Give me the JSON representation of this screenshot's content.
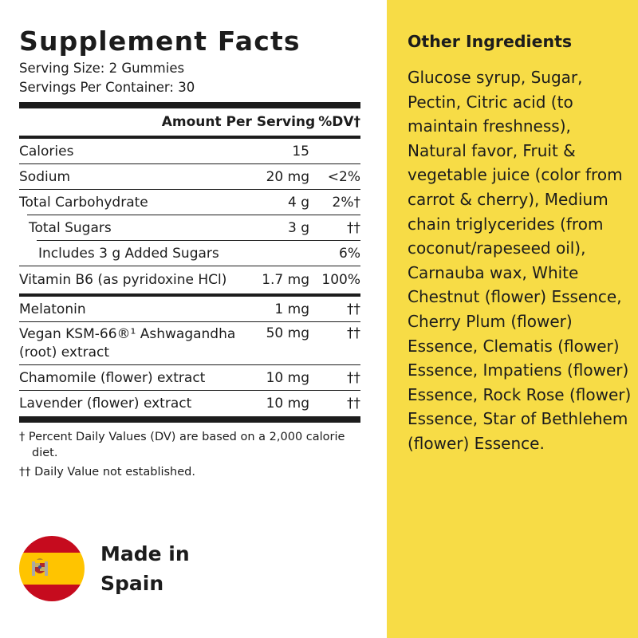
{
  "facts": {
    "title": "Supplement Facts",
    "serving_size": "Serving Size: 2 Gummies",
    "servings_per_container": "Servings Per Container: 30",
    "header_amount": "Amount Per Serving",
    "header_dv": "%DV†",
    "rows": [
      {
        "name": "Calories",
        "amount": "15",
        "dv": ""
      },
      {
        "name": "Sodium",
        "amount": "20 mg",
        "dv": "<2%"
      },
      {
        "name": "Total Carbohydrate",
        "amount": "4 g",
        "dv": "2%†"
      },
      {
        "name": "Total Sugars",
        "amount": "3 g",
        "dv": "††"
      },
      {
        "name": "Includes 3 g Added Sugars",
        "amount": "",
        "dv": "6%"
      },
      {
        "name": "Vitamin B6 (as pyridoxine HCl)",
        "amount": "1.7 mg",
        "dv": "100%"
      },
      {
        "name": "Melatonin",
        "amount": "1 mg",
        "dv": "††"
      },
      {
        "name": "Vegan KSM-66®¹ Ashwagandha (root) extract",
        "amount": "50 mg",
        "dv": "††"
      },
      {
        "name": "Chamomile (flower) extract",
        "amount": "10 mg",
        "dv": "††"
      },
      {
        "name": "Lavender (flower) extract",
        "amount": "10 mg",
        "dv": "††"
      }
    ],
    "footnote_dv": "† Percent Daily Values (DV) are based on a 2,000 calorie diet.",
    "footnote_not_established": "†† Daily Value not established."
  },
  "origin": {
    "line1": "Made in",
    "line2": "Spain",
    "flag_red": "#c60b1e",
    "flag_yellow": "#ffc400"
  },
  "other_ingredients": {
    "heading": "Other Ingredients",
    "text": "Glucose syrup, Sugar, Pectin, Citric acid (to maintain freshness), Natural favor, Fruit & vegetable juice (color from carrot & cherry), Medium chain triglycerides (from coconut/rapeseed oil), Carnauba wax, White Chestnut (flower) Essence, Cherry Plum (flower) Essence, Clematis (flower) Essence, Impatiens (flower) Essence, Rock Rose (flower) Essence, Star of Bethlehem (flower) Essence.",
    "background": "#f7dc46"
  }
}
